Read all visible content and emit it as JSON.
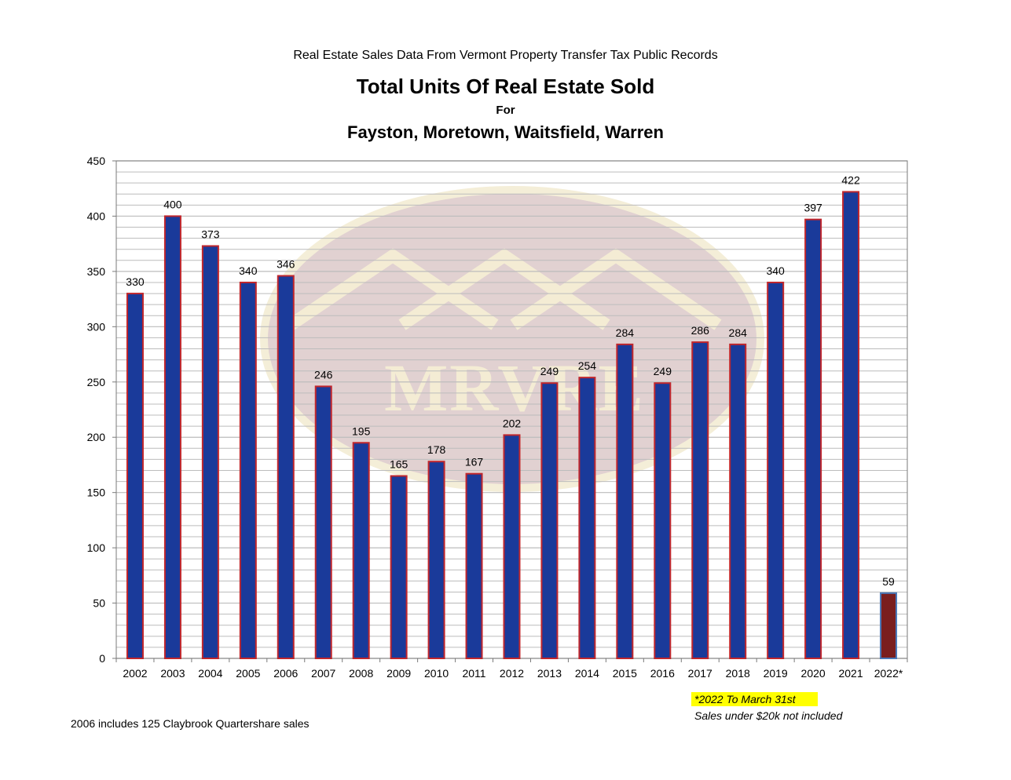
{
  "header": {
    "pretitle": "Real Estate Sales Data From Vermont Property Transfer Tax Public Records",
    "title": "Total Units Of Real Estate Sold",
    "for_label": "For",
    "subtitle": "Fayston, Moretown, Waitsfield, Warren"
  },
  "watermark": {
    "text": "MRVRE"
  },
  "notes": {
    "highlight": "*2022 To March 31st",
    "exclusion": "Sales under $20k not included",
    "footnote": "2006 includes 125 Claybrook Quartershare sales"
  },
  "colors": {
    "bar_fill": "#1a3a9a",
    "bar_border": "#c0262c",
    "partial_bar_fill": "#7a1e1e",
    "partial_bar_border": "#4a78b8",
    "grid": "#bcbcbc",
    "watermark": "#dcc9c9"
  },
  "chart_data": {
    "type": "bar",
    "title": "Total Units Of Real Estate Sold",
    "subtitle": "Fayston, Moretown, Waitsfield, Warren",
    "xlabel": "",
    "ylabel": "",
    "ylim": [
      0,
      450
    ],
    "yticks": [
      0,
      50,
      100,
      150,
      200,
      250,
      300,
      350,
      400,
      450
    ],
    "grid": true,
    "categories": [
      "2002",
      "2003",
      "2004",
      "2005",
      "2006",
      "2007",
      "2008",
      "2009",
      "2010",
      "2011",
      "2012",
      "2013",
      "2014",
      "2015",
      "2016",
      "2017",
      "2018",
      "2019",
      "2020",
      "2021",
      "2022*"
    ],
    "values": [
      330,
      400,
      373,
      340,
      346,
      246,
      195,
      165,
      178,
      167,
      202,
      249,
      254,
      284,
      249,
      286,
      284,
      340,
      397,
      422,
      59
    ],
    "data_labels": [
      "330",
      "400",
      "373",
      "340",
      "346",
      "246",
      "195",
      "165",
      "178",
      "167",
      "202",
      "249",
      "254",
      "284",
      "249",
      "286",
      "284",
      "340",
      "397",
      "422",
      "59"
    ],
    "partial_category": "2022*"
  }
}
